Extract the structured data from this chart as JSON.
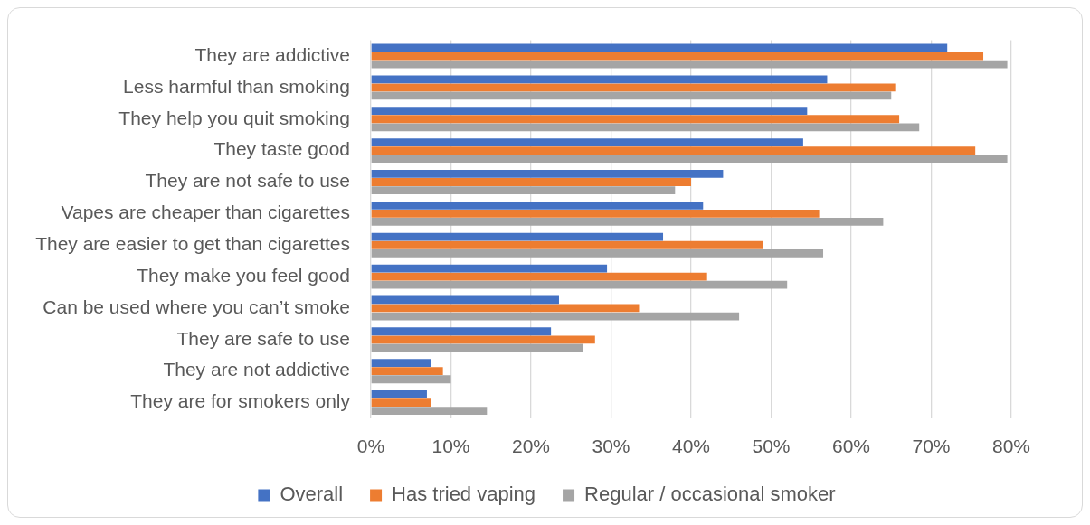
{
  "chart_data": {
    "type": "bar",
    "orientation": "horizontal",
    "categories": [
      "They are addictive",
      "Less harmful than smoking",
      "They help you quit smoking",
      "They taste good",
      "They are not safe to use",
      "Vapes are cheaper than cigarettes",
      "They are easier to get than cigarettes",
      "They make you feel good",
      "Can be used where you can’t smoke",
      "They are safe to use",
      "They are not addictive",
      "They are for smokers only"
    ],
    "series": [
      {
        "name": "Overall",
        "color": "#4472c4",
        "values": [
          72,
          57,
          54.5,
          54,
          44,
          41.5,
          36.5,
          29.5,
          23.5,
          22.5,
          7.5,
          7
        ]
      },
      {
        "name": "Has tried vaping",
        "color": "#ed7d31",
        "values": [
          76.5,
          65.5,
          66,
          75.5,
          40,
          56,
          49,
          42,
          33.5,
          28,
          9,
          7.5
        ]
      },
      {
        "name": "Regular / occasional smoker",
        "color": "#a5a5a5",
        "values": [
          79.5,
          65,
          68.5,
          79.5,
          38,
          64,
          56.5,
          52,
          46,
          26.5,
          10,
          14.5
        ]
      }
    ],
    "xlim": [
      0,
      80
    ],
    "xticks": [
      {
        "value": 0,
        "label": "0%"
      },
      {
        "value": 10,
        "label": "10%"
      },
      {
        "value": 20,
        "label": "20%"
      },
      {
        "value": 30,
        "label": "30%"
      },
      {
        "value": 40,
        "label": "40%"
      },
      {
        "value": 50,
        "label": "50%"
      },
      {
        "value": 60,
        "label": "60%"
      },
      {
        "value": 70,
        "label": "70%"
      },
      {
        "value": 80,
        "label": "80%"
      }
    ],
    "grid": "x",
    "legend": "bottom"
  }
}
